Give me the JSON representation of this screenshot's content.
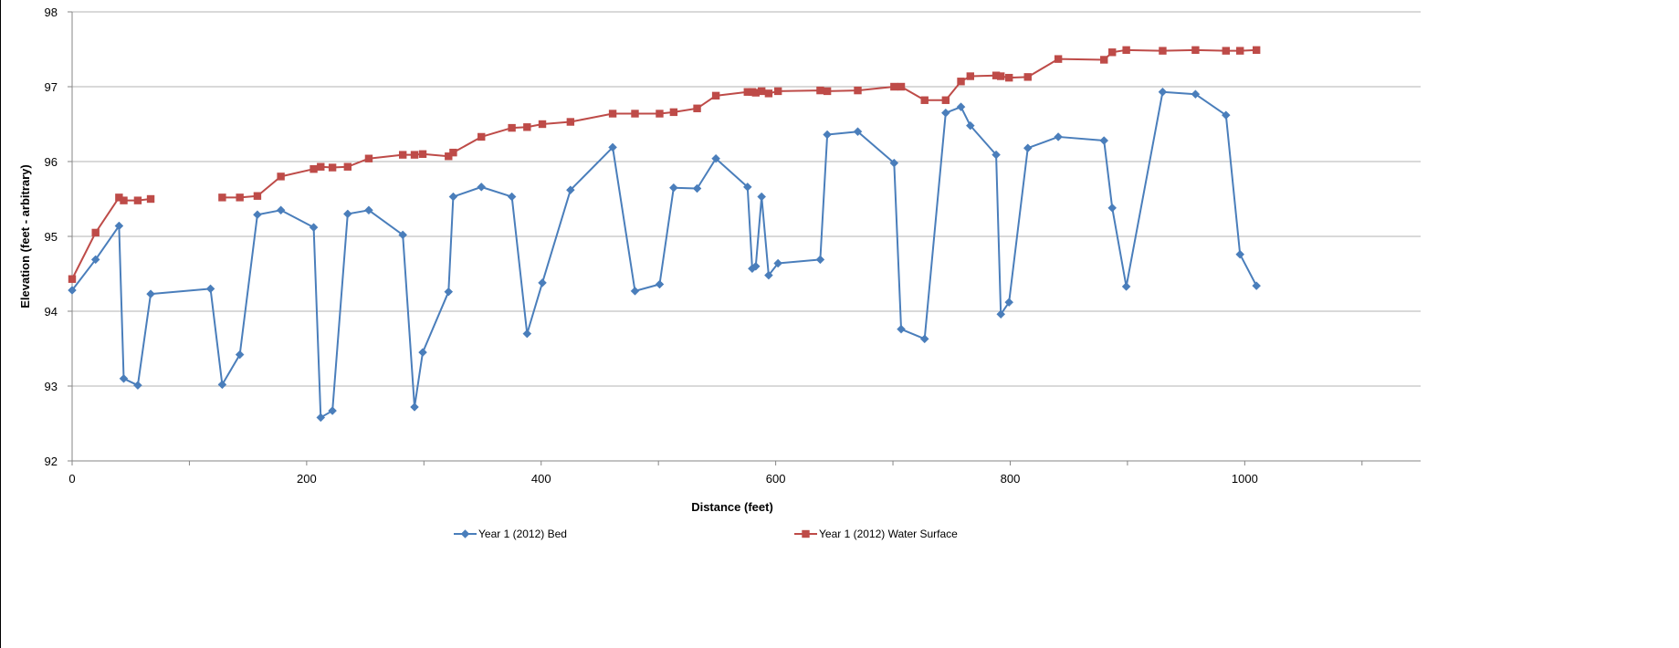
{
  "chart_data": {
    "type": "line",
    "xlabel": "Distance (feet)",
    "ylabel": "Elevation (feet - arbitrary)",
    "xlim": [
      0,
      1150
    ],
    "ylim": [
      92,
      98
    ],
    "x_ticks": [
      "0",
      "200",
      "400",
      "600",
      "800",
      "1000"
    ],
    "y_ticks": [
      "92",
      "93",
      "94",
      "95",
      "96",
      "97",
      "98"
    ],
    "grid": "horizontal",
    "legend_position": "bottom",
    "series": [
      {
        "name": "Year 1 (2012) Bed",
        "color": "#4a7ebb",
        "marker": "diamond",
        "segments": [
          [
            [
              0,
              94.28
            ],
            [
              20,
              94.69
            ],
            [
              40,
              95.14
            ],
            [
              44,
              93.1
            ],
            [
              56,
              93.01
            ],
            [
              67,
              94.23
            ],
            [
              118,
              94.3
            ],
            [
              128,
              93.02
            ],
            [
              143,
              93.42
            ],
            [
              158,
              95.29
            ],
            [
              178,
              95.35
            ],
            [
              206,
              95.12
            ],
            [
              212,
              92.58
            ],
            [
              222,
              92.67
            ],
            [
              235,
              95.3
            ],
            [
              253,
              95.35
            ],
            [
              282,
              95.02
            ],
            [
              292,
              92.72
            ],
            [
              299,
              93.45
            ],
            [
              321,
              94.26
            ],
            [
              325,
              95.53
            ],
            [
              349,
              95.66
            ],
            [
              375,
              95.53
            ],
            [
              388,
              93.7
            ],
            [
              401,
              94.38
            ],
            [
              425,
              95.62
            ],
            [
              461,
              96.19
            ],
            [
              480,
              94.27
            ],
            [
              501,
              94.36
            ],
            [
              513,
              95.65
            ],
            [
              533,
              95.64
            ],
            [
              549,
              96.04
            ],
            [
              576,
              95.66
            ],
            [
              580,
              94.57
            ],
            [
              583,
              94.6
            ],
            [
              588,
              95.53
            ],
            [
              594,
              94.48
            ],
            [
              602,
              94.64
            ],
            [
              638,
              94.69
            ],
            [
              644,
              96.36
            ],
            [
              670,
              96.4
            ],
            [
              701,
              95.98
            ],
            [
              707,
              93.76
            ],
            [
              727,
              93.63
            ],
            [
              745,
              96.65
            ],
            [
              758,
              96.73
            ],
            [
              766,
              96.48
            ],
            [
              788,
              96.09
            ],
            [
              792,
              93.96
            ],
            [
              799,
              94.12
            ],
            [
              815,
              96.18
            ],
            [
              841,
              96.33
            ],
            [
              880,
              96.28
            ],
            [
              887,
              95.38
            ],
            [
              899,
              94.33
            ],
            [
              930,
              96.93
            ],
            [
              958,
              96.9
            ],
            [
              984,
              96.62
            ],
            [
              996,
              94.76
            ],
            [
              1010,
              94.34
            ]
          ]
        ]
      },
      {
        "name": "Year 1 (2012) Water Surface",
        "color": "#be4b48",
        "marker": "square",
        "segments": [
          [
            [
              0,
              94.43
            ],
            [
              20,
              95.05
            ],
            [
              40,
              95.52
            ],
            [
              44,
              95.48
            ],
            [
              56,
              95.48
            ],
            [
              67,
              95.5
            ]
          ],
          [
            [
              128,
              95.52
            ],
            [
              143,
              95.52
            ],
            [
              158,
              95.54
            ],
            [
              178,
              95.8
            ],
            [
              206,
              95.9
            ],
            [
              212,
              95.93
            ],
            [
              222,
              95.92
            ],
            [
              235,
              95.93
            ],
            [
              253,
              96.04
            ],
            [
              282,
              96.09
            ],
            [
              292,
              96.09
            ],
            [
              299,
              96.1
            ],
            [
              321,
              96.07
            ],
            [
              325,
              96.12
            ],
            [
              349,
              96.33
            ],
            [
              375,
              96.45
            ],
            [
              388,
              96.46
            ],
            [
              401,
              96.5
            ],
            [
              425,
              96.53
            ],
            [
              461,
              96.64
            ],
            [
              480,
              96.64
            ],
            [
              501,
              96.64
            ],
            [
              513,
              96.66
            ],
            [
              533,
              96.71
            ],
            [
              549,
              96.88
            ],
            [
              576,
              96.93
            ],
            [
              580,
              96.93
            ],
            [
              583,
              96.92
            ],
            [
              588,
              96.94
            ],
            [
              594,
              96.91
            ],
            [
              602,
              96.94
            ],
            [
              638,
              96.95
            ],
            [
              644,
              96.94
            ],
            [
              670,
              96.95
            ],
            [
              701,
              97.0
            ],
            [
              707,
              97.0
            ],
            [
              727,
              96.82
            ],
            [
              745,
              96.82
            ],
            [
              758,
              97.07
            ],
            [
              766,
              97.14
            ],
            [
              788,
              97.15
            ],
            [
              792,
              97.14
            ],
            [
              799,
              97.12
            ],
            [
              815,
              97.13
            ],
            [
              841,
              97.37
            ],
            [
              880,
              97.36
            ],
            [
              887,
              97.46
            ],
            [
              899,
              97.49
            ],
            [
              930,
              97.48
            ],
            [
              958,
              97.49
            ],
            [
              984,
              97.48
            ],
            [
              996,
              97.48
            ],
            [
              1010,
              97.49
            ]
          ]
        ]
      }
    ]
  }
}
